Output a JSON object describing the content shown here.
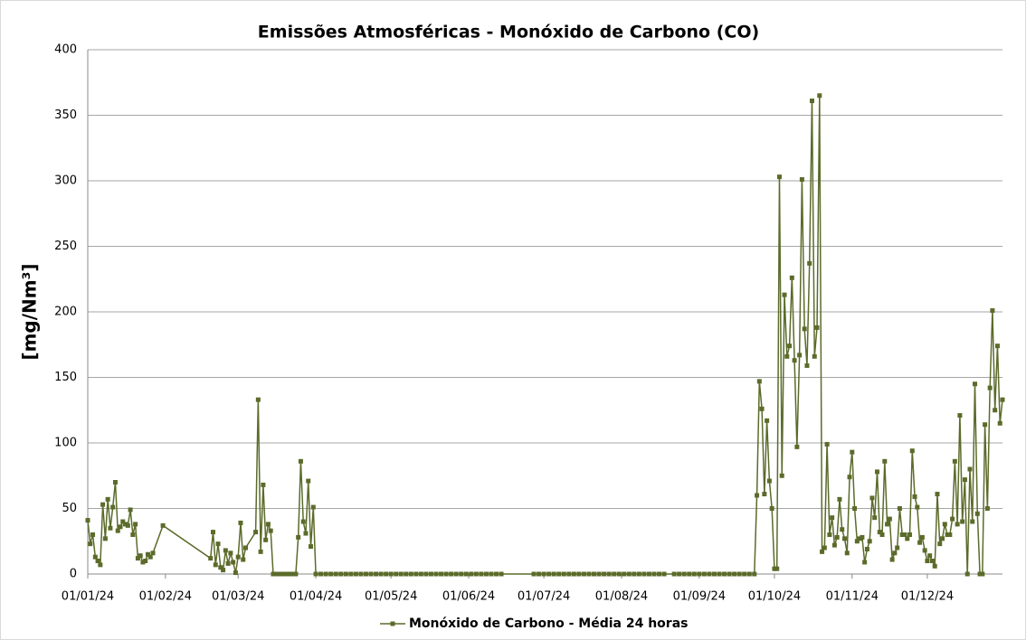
{
  "chart_data": {
    "type": "line",
    "title": "Emissões Atmosféricas - Monóxido de Carbono (CO)",
    "y_label": "[mg/Nm³]",
    "grid": true,
    "legend": "bottom",
    "xlim": [
      "2024-01-01",
      "2024-12-31"
    ],
    "xticks": [
      {
        "value": "2024-01-01",
        "label": "01/01/24"
      },
      {
        "value": "2024-02-01",
        "label": "01/02/24"
      },
      {
        "value": "2024-03-01",
        "label": "01/03/24"
      },
      {
        "value": "2024-04-01",
        "label": "01/04/24"
      },
      {
        "value": "2024-05-01",
        "label": "01/05/24"
      },
      {
        "value": "2024-06-01",
        "label": "01/06/24"
      },
      {
        "value": "2024-07-01",
        "label": "01/07/24"
      },
      {
        "value": "2024-08-01",
        "label": "01/08/24"
      },
      {
        "value": "2024-09-01",
        "label": "01/09/24"
      },
      {
        "value": "2024-10-01",
        "label": "01/10/24"
      },
      {
        "value": "2024-11-01",
        "label": "01/11/24"
      },
      {
        "value": "2024-12-01",
        "label": "01/12/24"
      }
    ],
    "ylim": [
      0,
      400
    ],
    "yticks": [
      0,
      50,
      100,
      150,
      200,
      250,
      300,
      350,
      400
    ],
    "x": [
      "2024-01-01",
      "2024-01-02",
      "2024-01-03",
      "2024-01-04",
      "2024-01-05",
      "2024-01-06",
      "2024-01-07",
      "2024-01-08",
      "2024-01-09",
      "2024-01-10",
      "2024-01-11",
      "2024-01-12",
      "2024-01-13",
      "2024-01-14",
      "2024-01-15",
      "2024-01-16",
      "2024-01-17",
      "2024-01-18",
      "2024-01-19",
      "2024-01-20",
      "2024-01-21",
      "2024-01-22",
      "2024-01-23",
      "2024-01-24",
      "2024-01-25",
      "2024-01-26",
      "2024-01-27",
      "2024-01-31",
      "2024-02-19",
      "2024-02-20",
      "2024-02-21",
      "2024-02-22",
      "2024-02-23",
      "2024-02-24",
      "2024-02-25",
      "2024-02-26",
      "2024-02-27",
      "2024-02-28",
      "2024-02-29",
      "2024-03-01",
      "2024-03-02",
      "2024-03-03",
      "2024-03-04",
      "2024-03-08",
      "2024-03-09",
      "2024-03-10",
      "2024-03-11",
      "2024-03-12",
      "2024-03-13",
      "2024-03-14",
      "2024-03-15",
      "2024-03-16",
      "2024-03-17",
      "2024-03-18",
      "2024-03-19",
      "2024-03-20",
      "2024-03-21",
      "2024-03-22",
      "2024-03-23",
      "2024-03-24",
      "2024-03-25",
      "2024-03-26",
      "2024-03-27",
      "2024-03-28",
      "2024-03-29",
      "2024-03-30",
      "2024-03-31",
      "2024-04-01",
      "2024-04-03",
      "2024-04-05",
      "2024-04-07",
      "2024-04-09",
      "2024-04-11",
      "2024-04-13",
      "2024-04-15",
      "2024-04-17",
      "2024-04-19",
      "2024-04-21",
      "2024-04-23",
      "2024-04-25",
      "2024-04-27",
      "2024-04-29",
      "2024-05-01",
      "2024-05-03",
      "2024-05-05",
      "2024-05-07",
      "2024-05-09",
      "2024-05-11",
      "2024-05-13",
      "2024-05-15",
      "2024-05-17",
      "2024-05-19",
      "2024-05-21",
      "2024-05-23",
      "2024-05-25",
      "2024-05-27",
      "2024-05-29",
      "2024-05-31",
      "2024-06-02",
      "2024-06-04",
      "2024-06-06",
      "2024-06-08",
      "2024-06-10",
      "2024-06-12",
      "2024-06-14",
      "2024-06-27",
      "2024-06-29",
      "2024-07-01",
      "2024-07-03",
      "2024-07-05",
      "2024-07-07",
      "2024-07-09",
      "2024-07-11",
      "2024-07-13",
      "2024-07-15",
      "2024-07-17",
      "2024-07-19",
      "2024-07-21",
      "2024-07-23",
      "2024-07-25",
      "2024-07-27",
      "2024-07-29",
      "2024-07-31",
      "2024-08-02",
      "2024-08-04",
      "2024-08-06",
      "2024-08-08",
      "2024-08-10",
      "2024-08-12",
      "2024-08-14",
      "2024-08-16",
      "2024-08-18",
      "2024-08-22",
      "2024-08-24",
      "2024-08-26",
      "2024-08-28",
      "2024-08-30",
      "2024-09-01",
      "2024-09-03",
      "2024-09-05",
      "2024-09-07",
      "2024-09-09",
      "2024-09-11",
      "2024-09-13",
      "2024-09-15",
      "2024-09-17",
      "2024-09-19",
      "2024-09-21",
      "2024-09-23",
      "2024-09-24",
      "2024-09-25",
      "2024-09-26",
      "2024-09-27",
      "2024-09-28",
      "2024-09-29",
      "2024-09-30",
      "2024-10-01",
      "2024-10-02",
      "2024-10-03",
      "2024-10-04",
      "2024-10-05",
      "2024-10-06",
      "2024-10-07",
      "2024-10-08",
      "2024-10-09",
      "2024-10-10",
      "2024-10-11",
      "2024-10-12",
      "2024-10-13",
      "2024-10-14",
      "2024-10-15",
      "2024-10-16",
      "2024-10-17",
      "2024-10-18",
      "2024-10-19",
      "2024-10-20",
      "2024-10-21",
      "2024-10-22",
      "2024-10-23",
      "2024-10-24",
      "2024-10-25",
      "2024-10-26",
      "2024-10-27",
      "2024-10-28",
      "2024-10-29",
      "2024-10-30",
      "2024-10-31",
      "2024-11-01",
      "2024-11-02",
      "2024-11-03",
      "2024-11-04",
      "2024-11-05",
      "2024-11-06",
      "2024-11-07",
      "2024-11-08",
      "2024-11-09",
      "2024-11-10",
      "2024-11-11",
      "2024-11-12",
      "2024-11-13",
      "2024-11-14",
      "2024-11-15",
      "2024-11-16",
      "2024-11-17",
      "2024-11-18",
      "2024-11-19",
      "2024-11-20",
      "2024-11-21",
      "2024-11-22",
      "2024-11-23",
      "2024-11-24",
      "2024-11-25",
      "2024-11-26",
      "2024-11-27",
      "2024-11-28",
      "2024-11-29",
      "2024-11-30",
      "2024-12-01",
      "2024-12-02",
      "2024-12-03",
      "2024-12-04",
      "2024-12-05",
      "2024-12-06",
      "2024-12-07",
      "2024-12-08",
      "2024-12-09",
      "2024-12-10",
      "2024-12-11",
      "2024-12-12",
      "2024-12-13",
      "2024-12-14",
      "2024-12-15",
      "2024-12-16",
      "2024-12-17",
      "2024-12-18",
      "2024-12-19",
      "2024-12-20",
      "2024-12-21",
      "2024-12-22",
      "2024-12-23",
      "2024-12-24",
      "2024-12-25",
      "2024-12-26",
      "2024-12-27",
      "2024-12-28",
      "2024-12-29",
      "2024-12-30",
      "2024-12-31"
    ],
    "series": [
      {
        "name": "Monóxido de Carbono - Média 24 horas",
        "color": "#5b6b2a",
        "values": [
          41,
          23,
          30,
          13,
          10,
          7,
          53,
          27,
          57,
          35,
          51,
          70,
          33,
          36,
          40,
          38,
          37,
          49,
          30,
          38,
          12,
          14,
          9,
          10,
          15,
          13,
          16,
          37,
          12,
          32,
          7,
          23,
          5,
          3,
          18,
          8,
          16,
          9,
          1,
          13,
          39,
          11,
          20,
          32,
          133,
          17,
          68,
          26,
          38,
          33,
          0,
          0,
          0,
          0,
          0,
          0,
          0,
          0,
          0,
          0,
          28,
          86,
          40,
          31,
          71,
          21,
          51,
          0,
          0,
          0,
          0,
          0,
          0,
          0,
          0,
          0,
          0,
          0,
          0,
          0,
          0,
          0,
          0,
          0,
          0,
          0,
          0,
          0,
          0,
          0,
          0,
          0,
          0,
          0,
          0,
          0,
          0,
          0,
          0,
          0,
          0,
          0,
          0,
          0,
          0,
          0,
          0,
          0,
          0,
          0,
          0,
          0,
          0,
          0,
          0,
          0,
          0,
          0,
          0,
          0,
          0,
          0,
          0,
          0,
          0,
          0,
          0,
          0,
          0,
          0,
          0,
          0,
          0,
          0,
          0,
          0,
          0,
          0,
          0,
          0,
          0,
          0,
          0,
          0,
          0,
          0,
          0,
          0,
          0,
          60,
          147,
          126,
          61,
          117,
          71,
          50,
          4,
          4,
          303,
          75,
          213,
          166,
          174,
          226,
          163,
          97,
          167,
          301,
          187,
          159,
          237,
          361,
          166,
          188,
          365,
          17,
          20,
          99,
          30,
          43,
          22,
          28,
          57,
          34,
          27,
          16,
          74,
          93,
          50,
          25,
          27,
          28,
          9,
          19,
          25,
          58,
          43,
          78,
          32,
          30,
          86,
          38,
          42,
          11,
          16,
          20,
          50,
          30,
          30,
          27,
          30,
          94,
          59,
          51,
          24,
          28,
          18,
          10,
          14,
          10,
          6,
          61,
          23,
          27,
          38,
          30,
          30,
          42,
          86,
          38,
          121,
          40,
          72,
          0,
          80,
          40,
          145,
          46,
          0,
          0,
          114,
          50,
          142,
          201,
          125,
          174,
          115,
          133
        ]
      }
    ]
  }
}
